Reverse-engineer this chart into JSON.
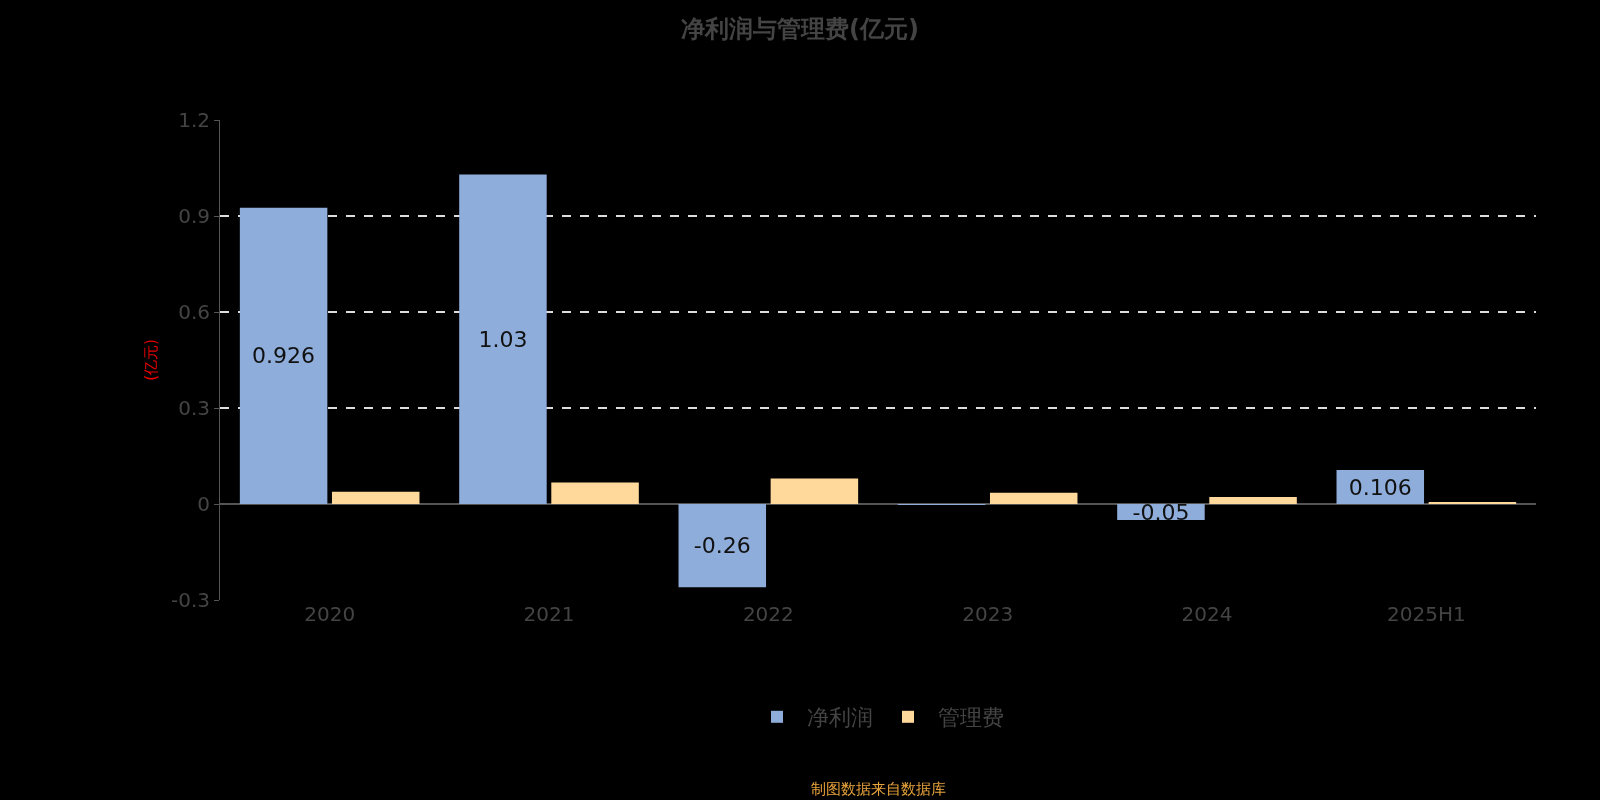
{
  "chart_data": {
    "type": "bar",
    "title": "净利润与管理费(亿元)",
    "ylabel": "(亿元)",
    "categories": [
      "2020",
      "2021",
      "2022",
      "2023",
      "2024",
      "2025H1"
    ],
    "series": [
      {
        "name": "净利润",
        "color": "#8eadda",
        "values": [
          0.926,
          1.03,
          -0.26,
          -0.003,
          -0.05,
          0.106
        ],
        "value_labels": [
          "0.926",
          "1.03",
          "-0.26",
          null,
          "-0.05",
          "0.106"
        ]
      },
      {
        "name": "管理费",
        "color": "#ffd99c",
        "values": [
          0.038,
          0.067,
          0.08,
          0.035,
          0.022,
          0.006
        ]
      }
    ],
    "ylim": [
      -0.3,
      1.2
    ],
    "yticks": [
      -0.3,
      0,
      0.3,
      0.6,
      0.9,
      1.2
    ],
    "grid": "y",
    "legend": "bottom",
    "annotations": [
      "制图数据来自数据库"
    ]
  }
}
